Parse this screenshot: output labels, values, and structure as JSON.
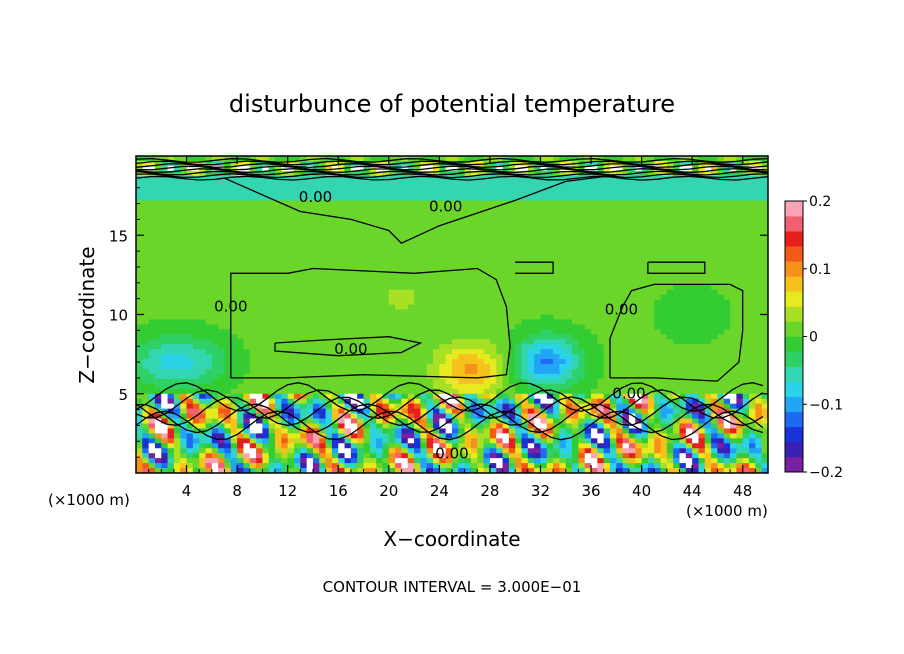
{
  "chart_data": {
    "type": "heatmap",
    "title": "disturbunce of potential temperature",
    "xlabel": "X−coordinate",
    "ylabel": "Z−coordinate",
    "x_unit_left": "(×1000 m)",
    "x_unit_right": "(×1000 m)",
    "xlim": [
      0,
      50
    ],
    "ylim": [
      0,
      20
    ],
    "xticks": [
      4,
      8,
      12,
      16,
      20,
      24,
      28,
      32,
      36,
      40,
      44,
      48
    ],
    "yticks": [
      5,
      10,
      15
    ],
    "colorbar": {
      "range": [
        -0.2,
        0.2
      ],
      "ticks": [
        0.2,
        0.1,
        0,
        -0.1,
        -0.2
      ],
      "tick_labels": [
        "0.2",
        "0.1",
        "0",
        "−0.1",
        "−0.2"
      ],
      "colors": [
        "#7a1fa2",
        "#3a1fb5",
        "#1a33d9",
        "#1f6af2",
        "#22a5f5",
        "#2bd3e8",
        "#33d6b0",
        "#2fd166",
        "#33cc33",
        "#6ad62a",
        "#a8e025",
        "#e7ea1e",
        "#f5c21c",
        "#f5901a",
        "#f25a18",
        "#e61e1e",
        "#f06070",
        "#f8a4b4"
      ]
    },
    "contour_label": "0.00",
    "contour_interval_text": "CONTOUR INTERVAL = 3.000E−01",
    "anomalies": [
      {
        "x": 26.5,
        "z": 6.5,
        "value": 0.09
      },
      {
        "x": 32.5,
        "z": 7.0,
        "value": -0.12
      },
      {
        "x": 2.0,
        "z": 7.0,
        "value": -0.06
      },
      {
        "x": 5.0,
        "z": 7.0,
        "value": -0.05
      },
      {
        "x": 21.0,
        "z": 11.0,
        "value": 0.02
      },
      {
        "x": 44.0,
        "z": 10.0,
        "value": -0.02
      }
    ],
    "grid": false
  }
}
